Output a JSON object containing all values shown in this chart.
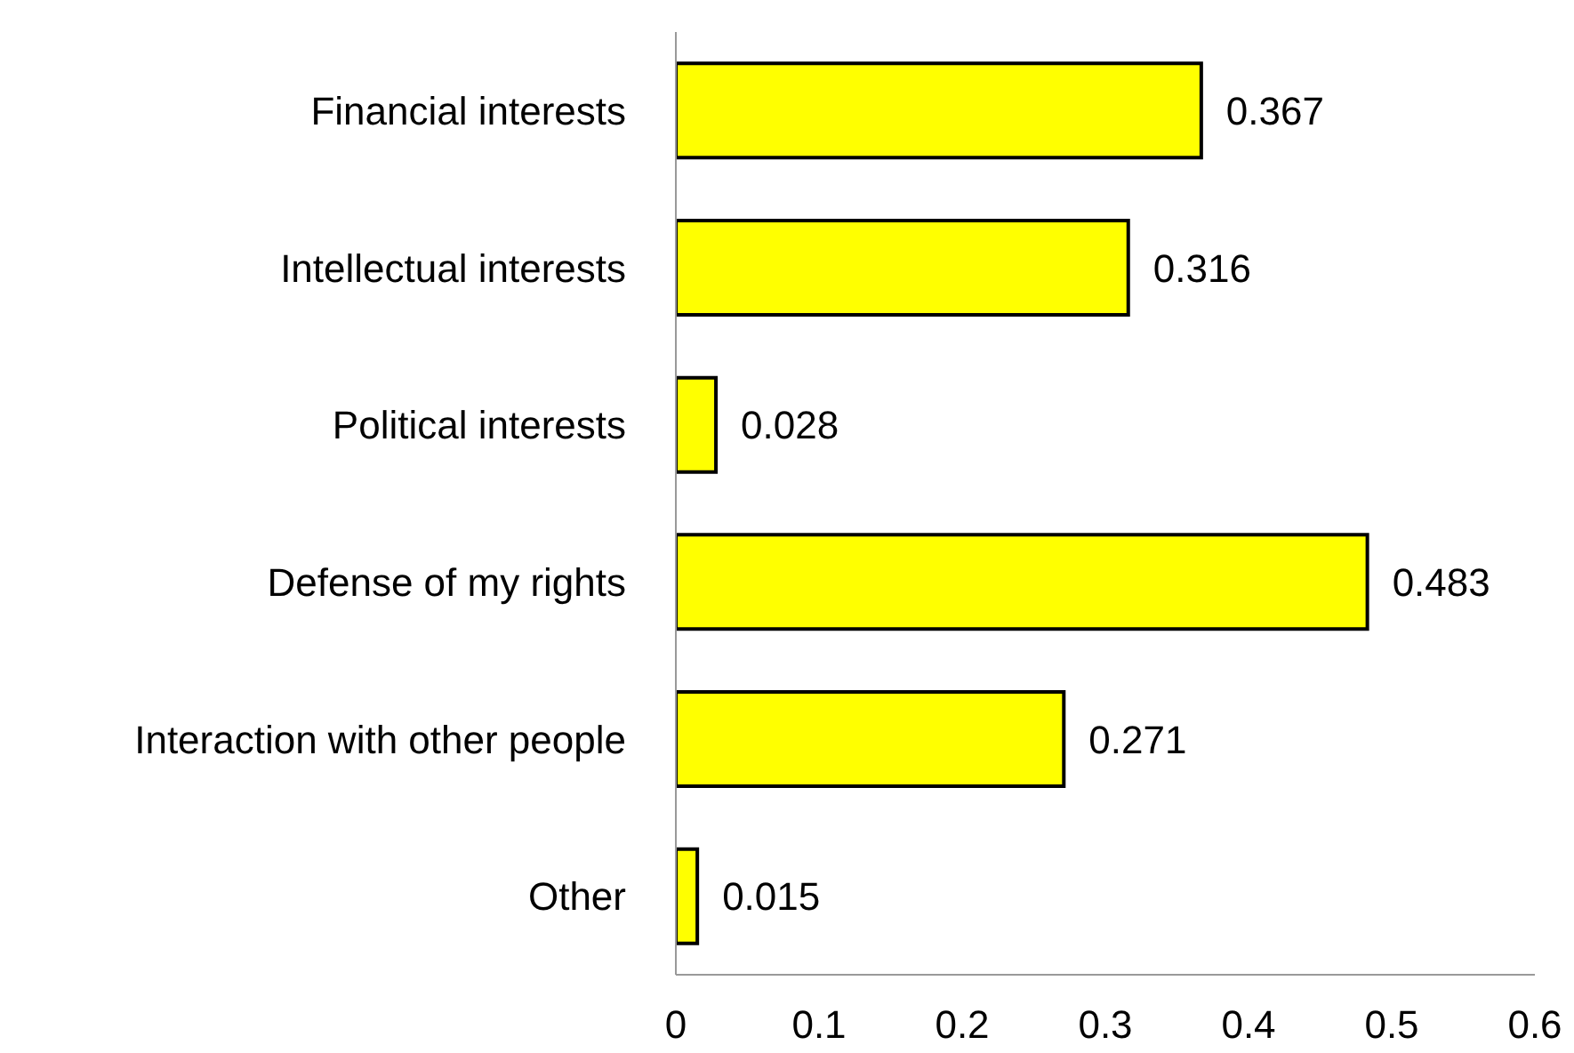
{
  "chart_data": {
    "type": "bar",
    "orientation": "horizontal",
    "categories": [
      "Financial interests",
      "Intellectual interests",
      "Political interests",
      "Defense of my rights",
      "Interaction with other people",
      "Other"
    ],
    "values": [
      0.367,
      0.316,
      0.028,
      0.483,
      0.271,
      0.015
    ],
    "color": "#ffff00",
    "xlim": [
      0,
      0.6
    ],
    "xticks": [
      0,
      0.1,
      0.2,
      0.3,
      0.4,
      0.5,
      0.6
    ],
    "data_labels": true
  }
}
